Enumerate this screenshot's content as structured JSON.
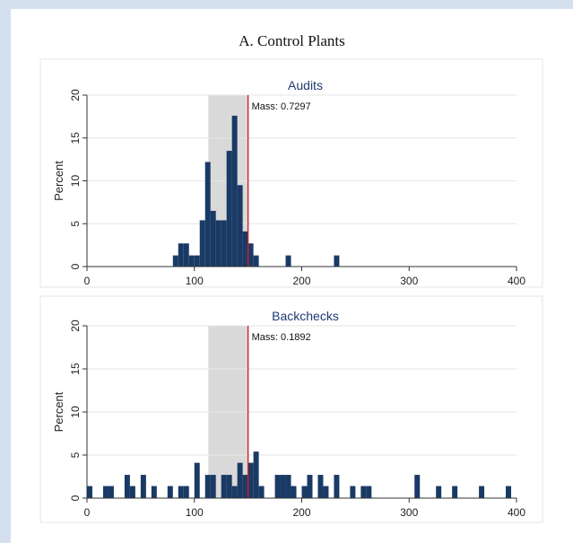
{
  "figure": {
    "title": "A. Control Plants"
  },
  "colors": {
    "bar": "#1a3a66",
    "threshold": "#cc2222",
    "band": "#d9d9d9",
    "panel_title": "#1f3a73",
    "grid": "#e6e6e6"
  },
  "chart_data": [
    {
      "type": "bar",
      "title": "Audits",
      "ylabel": "Percent",
      "xlim": [
        0,
        400
      ],
      "ylim": [
        0,
        20
      ],
      "xticks": [
        0,
        100,
        200,
        300,
        400
      ],
      "yticks": [
        0,
        5,
        10,
        15,
        20
      ],
      "shaded_range": [
        113,
        150
      ],
      "threshold": 150,
      "annotation": "Mass: 0.7297",
      "bin_width": 5,
      "bins": [
        {
          "x": 80,
          "y": 1.3
        },
        {
          "x": 85,
          "y": 2.7
        },
        {
          "x": 90,
          "y": 2.7
        },
        {
          "x": 95,
          "y": 1.3
        },
        {
          "x": 100,
          "y": 1.3
        },
        {
          "x": 105,
          "y": 5.4
        },
        {
          "x": 110,
          "y": 12.2
        },
        {
          "x": 115,
          "y": 6.5
        },
        {
          "x": 120,
          "y": 5.4
        },
        {
          "x": 125,
          "y": 5.4
        },
        {
          "x": 130,
          "y": 13.5
        },
        {
          "x": 135,
          "y": 17.6
        },
        {
          "x": 140,
          "y": 9.5
        },
        {
          "x": 145,
          "y": 4.1
        },
        {
          "x": 150,
          "y": 2.7
        },
        {
          "x": 155,
          "y": 1.3
        },
        {
          "x": 185,
          "y": 1.3
        },
        {
          "x": 230,
          "y": 1.3
        }
      ]
    },
    {
      "type": "bar",
      "title": "Backchecks",
      "ylabel": "Percent",
      "xlim": [
        0,
        400
      ],
      "ylim": [
        0,
        20
      ],
      "xticks": [
        0,
        100,
        200,
        300,
        400
      ],
      "yticks": [
        0,
        5,
        10,
        15,
        20
      ],
      "shaded_range": [
        113,
        150
      ],
      "threshold": 150,
      "annotation": "Mass: 0.1892",
      "bin_width": 5,
      "bins": [
        {
          "x": 0,
          "y": 1.4
        },
        {
          "x": 15,
          "y": 1.4
        },
        {
          "x": 20,
          "y": 1.4
        },
        {
          "x": 35,
          "y": 2.7
        },
        {
          "x": 40,
          "y": 1.4
        },
        {
          "x": 50,
          "y": 2.7
        },
        {
          "x": 60,
          "y": 1.4
        },
        {
          "x": 75,
          "y": 1.4
        },
        {
          "x": 85,
          "y": 1.4
        },
        {
          "x": 90,
          "y": 1.4
        },
        {
          "x": 100,
          "y": 4.1
        },
        {
          "x": 110,
          "y": 2.7
        },
        {
          "x": 115,
          "y": 2.7
        },
        {
          "x": 125,
          "y": 2.7
        },
        {
          "x": 130,
          "y": 2.7
        },
        {
          "x": 135,
          "y": 1.4
        },
        {
          "x": 140,
          "y": 4.1
        },
        {
          "x": 145,
          "y": 2.7
        },
        {
          "x": 150,
          "y": 4.1
        },
        {
          "x": 155,
          "y": 5.4
        },
        {
          "x": 160,
          "y": 1.4
        },
        {
          "x": 175,
          "y": 2.7
        },
        {
          "x": 180,
          "y": 2.7
        },
        {
          "x": 185,
          "y": 2.7
        },
        {
          "x": 190,
          "y": 1.4
        },
        {
          "x": 200,
          "y": 1.4
        },
        {
          "x": 205,
          "y": 2.7
        },
        {
          "x": 215,
          "y": 2.7
        },
        {
          "x": 220,
          "y": 1.4
        },
        {
          "x": 230,
          "y": 2.7
        },
        {
          "x": 245,
          "y": 1.4
        },
        {
          "x": 255,
          "y": 1.4
        },
        {
          "x": 260,
          "y": 1.4
        },
        {
          "x": 305,
          "y": 2.7
        },
        {
          "x": 325,
          "y": 1.4
        },
        {
          "x": 340,
          "y": 1.4
        },
        {
          "x": 365,
          "y": 1.4
        },
        {
          "x": 390,
          "y": 1.4
        }
      ]
    }
  ]
}
